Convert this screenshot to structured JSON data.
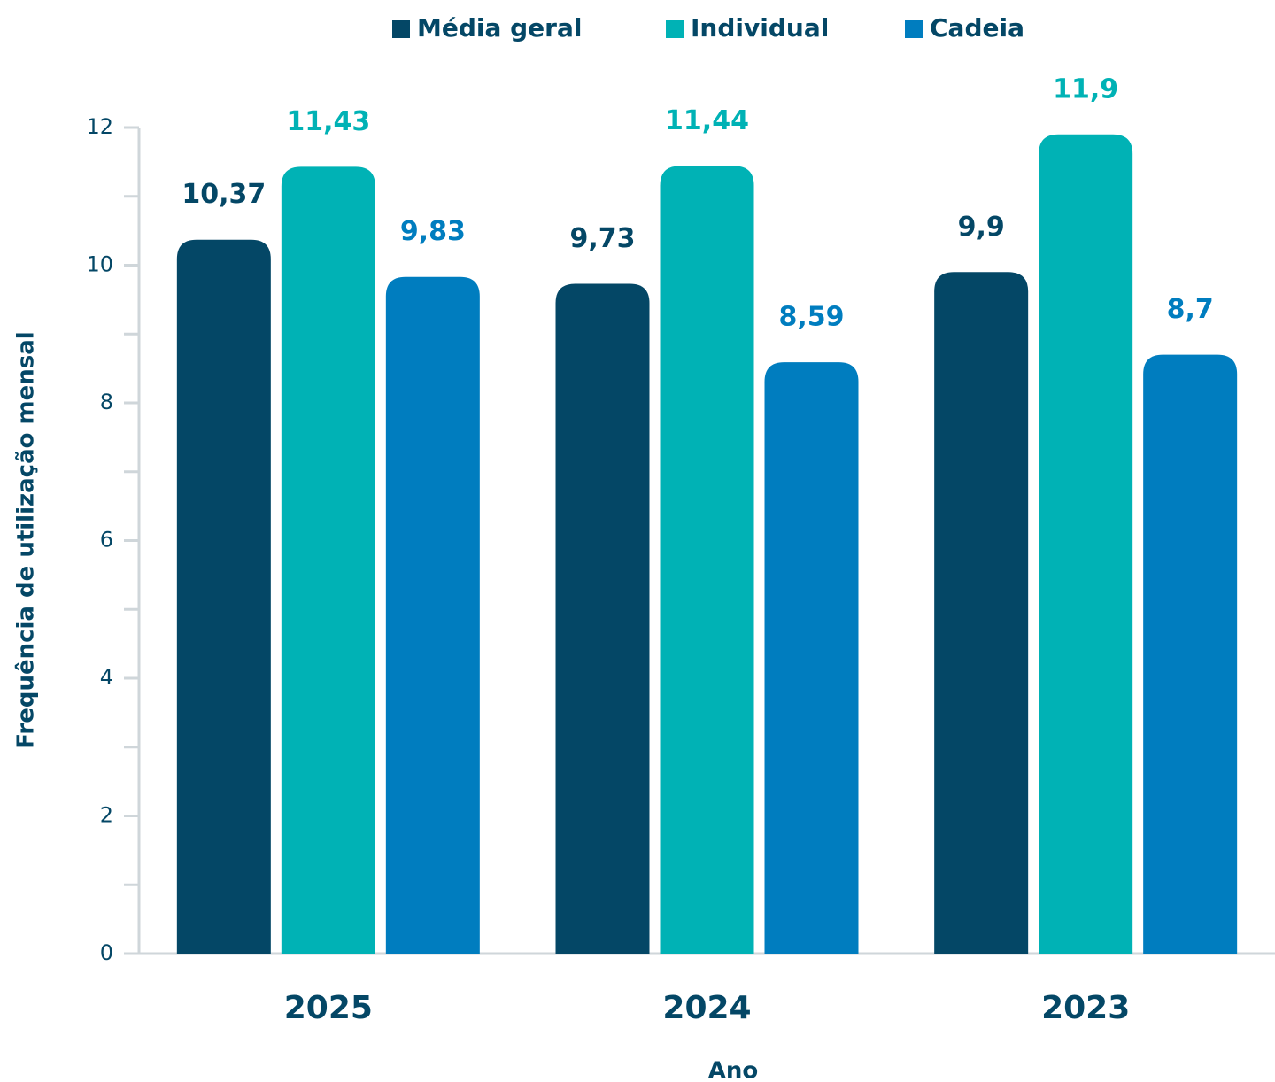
{
  "chart_data": {
    "type": "bar",
    "x_label": "Ano",
    "y_label": "Frequência de utilização mensal",
    "categories": [
      "2025",
      "2024",
      "2023"
    ],
    "series": [
      {
        "name": "Média geral",
        "color": "#044766",
        "values": [
          10.37,
          9.73,
          9.9
        ],
        "value_labels": [
          "10,37",
          "9,73",
          "9,9"
        ]
      },
      {
        "name": "Individual",
        "color": "#00b2b5",
        "values": [
          11.43,
          11.44,
          11.9
        ],
        "value_labels": [
          "11,43",
          "11,44",
          "11,9"
        ]
      },
      {
        "name": "Cadeia",
        "color": "#007dbf",
        "values": [
          9.83,
          8.59,
          8.7
        ],
        "value_labels": [
          "9,83",
          "8,59",
          "8,7"
        ]
      }
    ],
    "ylim": [
      0,
      12
    ],
    "yticks": [
      0,
      2,
      4,
      6,
      8,
      10,
      12
    ],
    "yminorticks": [
      1,
      3,
      5,
      7,
      9,
      11
    ],
    "legend": "top"
  }
}
